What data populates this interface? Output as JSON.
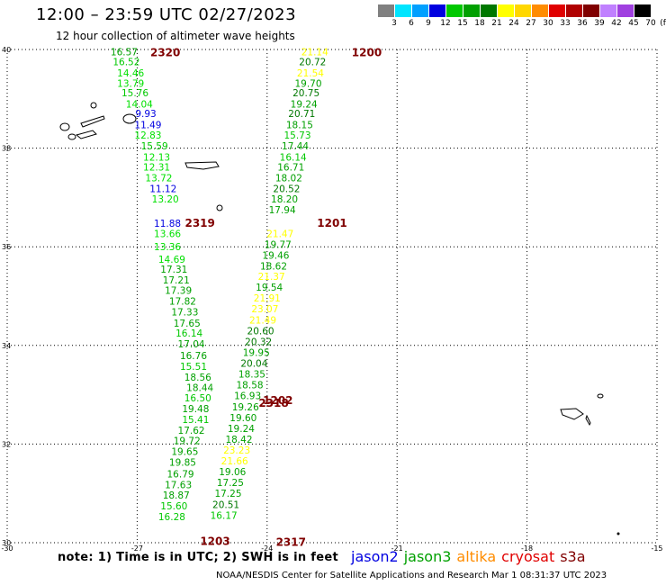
{
  "header": {
    "title": "12:00 – 23:59 UTC 02/27/2023",
    "subtitle": "12 hour collection of altimeter wave heights"
  },
  "colorbar": {
    "unit": "(ft)",
    "entries": [
      {
        "label": "3",
        "color": "#808080"
      },
      {
        "label": "6",
        "color": "#00e5ff"
      },
      {
        "label": "9",
        "color": "#00a0ff"
      },
      {
        "label": "12",
        "color": "#0000e0"
      },
      {
        "label": "15",
        "color": "#00c800"
      },
      {
        "label": "18",
        "color": "#00a000"
      },
      {
        "label": "21",
        "color": "#007800"
      },
      {
        "label": "24",
        "color": "#ffff00"
      },
      {
        "label": "27",
        "color": "#ffd700"
      },
      {
        "label": "30",
        "color": "#ff8c00"
      },
      {
        "label": "33",
        "color": "#e00000"
      },
      {
        "label": "36",
        "color": "#b00000"
      },
      {
        "label": "39",
        "color": "#800000"
      },
      {
        "label": "42",
        "color": "#c080ff"
      },
      {
        "label": "45",
        "color": "#a040e0"
      },
      {
        "label": "70",
        "color": "#000000"
      }
    ]
  },
  "axes": {
    "lon_ticks": [
      "-30",
      "-27",
      "-24",
      "-21",
      "-18",
      "-15"
    ],
    "lat_ticks": [
      "40",
      "38",
      "36",
      "34",
      "32",
      "30"
    ]
  },
  "passes": [
    {
      "label": "2320",
      "lon": -26.35,
      "lat": 39.95,
      "color": "#800000"
    },
    {
      "label": "1200",
      "lon": -21.7,
      "lat": 39.95,
      "color": "#800000"
    },
    {
      "label": "2319",
      "lon": -25.55,
      "lat": 36.5,
      "color": "#800000"
    },
    {
      "label": "1201",
      "lon": -22.5,
      "lat": 36.5,
      "color": "#800000"
    },
    {
      "label": "2318",
      "lon": -23.85,
      "lat": 32.85,
      "color": "#800000"
    },
    {
      "label": "1202",
      "lon": -23.75,
      "lat": 32.9,
      "color": "#800000"
    },
    {
      "label": "1203",
      "lon": -25.2,
      "lat": 30.05,
      "color": "#800000"
    },
    {
      "label": "2317",
      "lon": -23.45,
      "lat": 30.03,
      "color": "#800000"
    }
  ],
  "tracks": [
    {
      "name": "track-2320",
      "points": [
        {
          "v": "16.57",
          "lon": -27.3,
          "lat": 39.95,
          "c": "#00a000"
        },
        {
          "v": "16.52",
          "lon": -27.25,
          "lat": 39.75,
          "c": "#00c800"
        },
        {
          "v": "14.46",
          "lon": -27.15,
          "lat": 39.53,
          "c": "#00e000"
        },
        {
          "v": "13.79",
          "lon": -27.15,
          "lat": 39.32,
          "c": "#00e000"
        },
        {
          "v": "15.76",
          "lon": -27.05,
          "lat": 39.12,
          "c": "#00c800"
        },
        {
          "v": "14.04",
          "lon": -26.95,
          "lat": 38.9,
          "c": "#00e000"
        },
        {
          "v": "9.93",
          "lon": -26.8,
          "lat": 38.7,
          "c": "#0000e0"
        },
        {
          "v": "11.49",
          "lon": -26.75,
          "lat": 38.48,
          "c": "#0000e0"
        },
        {
          "v": "12.83",
          "lon": -26.75,
          "lat": 38.27,
          "c": "#00e000"
        },
        {
          "v": "15.59",
          "lon": -26.6,
          "lat": 38.05,
          "c": "#00c800"
        },
        {
          "v": "12.13",
          "lon": -26.55,
          "lat": 37.82,
          "c": "#00e000"
        },
        {
          "v": "12.31",
          "lon": -26.55,
          "lat": 37.62,
          "c": "#00e000"
        },
        {
          "v": "13.72",
          "lon": -26.5,
          "lat": 37.4,
          "c": "#00e000"
        },
        {
          "v": "11.12",
          "lon": -26.4,
          "lat": 37.18,
          "c": "#0000e0"
        },
        {
          "v": "13.20",
          "lon": -26.35,
          "lat": 36.97,
          "c": "#00e000"
        },
        {
          "v": "11.88",
          "lon": -26.3,
          "lat": 36.48,
          "c": "#0000e0"
        },
        {
          "v": "13.66",
          "lon": -26.3,
          "lat": 36.27,
          "c": "#00e000"
        },
        {
          "v": "13.36",
          "lon": -26.3,
          "lat": 36.0,
          "c": "#00e000"
        },
        {
          "v": "14.69",
          "lon": -26.2,
          "lat": 35.75,
          "c": "#00e000"
        },
        {
          "v": "17.31",
          "lon": -26.15,
          "lat": 35.55,
          "c": "#00a000"
        },
        {
          "v": "17.21",
          "lon": -26.1,
          "lat": 35.33,
          "c": "#00a000"
        },
        {
          "v": "17.39",
          "lon": -26.05,
          "lat": 35.12,
          "c": "#00a000"
        },
        {
          "v": "17.82",
          "lon": -25.95,
          "lat": 34.9,
          "c": "#00a000"
        },
        {
          "v": "17.33",
          "lon": -25.9,
          "lat": 34.68,
          "c": "#00a000"
        },
        {
          "v": "17.65",
          "lon": -25.85,
          "lat": 34.45,
          "c": "#00a000"
        },
        {
          "v": "16.14",
          "lon": -25.8,
          "lat": 34.25,
          "c": "#00c800"
        },
        {
          "v": "17.04",
          "lon": -25.75,
          "lat": 34.03,
          "c": "#00a000"
        },
        {
          "v": "16.76",
          "lon": -25.7,
          "lat": 33.8,
          "c": "#00a000"
        },
        {
          "v": "15.51",
          "lon": -25.7,
          "lat": 33.58,
          "c": "#00c800"
        },
        {
          "v": "18.56",
          "lon": -25.6,
          "lat": 33.36,
          "c": "#00a000"
        },
        {
          "v": "18.44",
          "lon": -25.55,
          "lat": 33.15,
          "c": "#00a000"
        },
        {
          "v": "16.50",
          "lon": -25.6,
          "lat": 32.94,
          "c": "#00c800"
        },
        {
          "v": "19.48",
          "lon": -25.65,
          "lat": 32.72,
          "c": "#00a000"
        },
        {
          "v": "15.41",
          "lon": -25.65,
          "lat": 32.5,
          "c": "#00c800"
        },
        {
          "v": "17.62",
          "lon": -25.75,
          "lat": 32.28,
          "c": "#00a000"
        },
        {
          "v": "19.72",
          "lon": -25.85,
          "lat": 32.07,
          "c": "#00a000"
        },
        {
          "v": "19.65",
          "lon": -25.9,
          "lat": 31.85,
          "c": "#00a000"
        },
        {
          "v": "19.85",
          "lon": -25.95,
          "lat": 31.63,
          "c": "#00a000"
        },
        {
          "v": "16.79",
          "lon": -26.0,
          "lat": 31.4,
          "c": "#00a000"
        },
        {
          "v": "17.63",
          "lon": -26.05,
          "lat": 31.18,
          "c": "#00a000"
        },
        {
          "v": "18.87",
          "lon": -26.1,
          "lat": 30.97,
          "c": "#00a000"
        },
        {
          "v": "15.60",
          "lon": -26.15,
          "lat": 30.75,
          "c": "#00c800"
        },
        {
          "v": "16.28",
          "lon": -26.2,
          "lat": 30.53,
          "c": "#00c800"
        }
      ]
    },
    {
      "name": "track-1200",
      "points": [
        {
          "v": "21.14",
          "lon": -22.9,
          "lat": 39.95,
          "c": "#ffff00"
        },
        {
          "v": "20.72",
          "lon": -22.95,
          "lat": 39.75,
          "c": "#007800"
        },
        {
          "v": "21.54",
          "lon": -23.0,
          "lat": 39.53,
          "c": "#ffff00"
        },
        {
          "v": "19.70",
          "lon": -23.05,
          "lat": 39.32,
          "c": "#00a000"
        },
        {
          "v": "20.75",
          "lon": -23.1,
          "lat": 39.12,
          "c": "#007800"
        },
        {
          "v": "19.24",
          "lon": -23.15,
          "lat": 38.9,
          "c": "#00a000"
        },
        {
          "v": "20.71",
          "lon": -23.2,
          "lat": 38.7,
          "c": "#007800"
        },
        {
          "v": "18.15",
          "lon": -23.25,
          "lat": 38.48,
          "c": "#00a000"
        },
        {
          "v": "15.73",
          "lon": -23.3,
          "lat": 38.27,
          "c": "#00c800"
        },
        {
          "v": "17.44",
          "lon": -23.35,
          "lat": 38.05,
          "c": "#00a000"
        },
        {
          "v": "16.14",
          "lon": -23.4,
          "lat": 37.82,
          "c": "#00c800"
        },
        {
          "v": "16.71",
          "lon": -23.45,
          "lat": 37.62,
          "c": "#00a000"
        },
        {
          "v": "18.02",
          "lon": -23.5,
          "lat": 37.4,
          "c": "#00a000"
        },
        {
          "v": "20.52",
          "lon": -23.55,
          "lat": 37.18,
          "c": "#007800"
        },
        {
          "v": "18.20",
          "lon": -23.6,
          "lat": 36.97,
          "c": "#00a000"
        },
        {
          "v": "17.94",
          "lon": -23.65,
          "lat": 36.75,
          "c": "#00a000"
        },
        {
          "v": "21.47",
          "lon": -23.7,
          "lat": 36.27,
          "c": "#ffff00"
        },
        {
          "v": "19.77",
          "lon": -23.75,
          "lat": 36.05,
          "c": "#00a000"
        },
        {
          "v": "19.46",
          "lon": -23.8,
          "lat": 35.83,
          "c": "#00a000"
        },
        {
          "v": "18.62",
          "lon": -23.85,
          "lat": 35.61,
          "c": "#00a000"
        },
        {
          "v": "21.37",
          "lon": -23.9,
          "lat": 35.4,
          "c": "#ffff00"
        },
        {
          "v": "19.54",
          "lon": -23.95,
          "lat": 35.18,
          "c": "#00a000"
        },
        {
          "v": "21.91",
          "lon": -24.0,
          "lat": 34.96,
          "c": "#ffff00"
        },
        {
          "v": "23.07",
          "lon": -24.05,
          "lat": 34.74,
          "c": "#ffff00"
        },
        {
          "v": "21.49",
          "lon": -24.1,
          "lat": 34.52,
          "c": "#ffff00"
        },
        {
          "v": "20.60",
          "lon": -24.15,
          "lat": 34.3,
          "c": "#007800"
        },
        {
          "v": "20.32",
          "lon": -24.2,
          "lat": 34.08,
          "c": "#007800"
        },
        {
          "v": "19.95",
          "lon": -24.25,
          "lat": 33.86,
          "c": "#00a000"
        },
        {
          "v": "20.04",
          "lon": -24.3,
          "lat": 33.64,
          "c": "#007800"
        },
        {
          "v": "18.35",
          "lon": -24.35,
          "lat": 33.42,
          "c": "#00a000"
        },
        {
          "v": "18.58",
          "lon": -24.4,
          "lat": 33.2,
          "c": "#00a000"
        },
        {
          "v": "16.93",
          "lon": -24.45,
          "lat": 32.98,
          "c": "#00a000"
        },
        {
          "v": "19.26",
          "lon": -24.5,
          "lat": 32.76,
          "c": "#00a000"
        },
        {
          "v": "19.60",
          "lon": -24.55,
          "lat": 32.54,
          "c": "#00a000"
        },
        {
          "v": "19.24",
          "lon": -24.6,
          "lat": 32.32,
          "c": "#00a000"
        },
        {
          "v": "18.42",
          "lon": -24.65,
          "lat": 32.1,
          "c": "#00a000"
        },
        {
          "v": "23.23",
          "lon": -24.7,
          "lat": 31.88,
          "c": "#ffff00"
        },
        {
          "v": "21.66",
          "lon": -24.75,
          "lat": 31.66,
          "c": "#ffff00"
        },
        {
          "v": "19.06",
          "lon": -24.8,
          "lat": 31.44,
          "c": "#00a000"
        },
        {
          "v": "17.25",
          "lon": -24.85,
          "lat": 31.22,
          "c": "#00a000"
        },
        {
          "v": "17.25",
          "lon": -24.9,
          "lat": 31.0,
          "c": "#00a000"
        },
        {
          "v": "20.51",
          "lon": -24.95,
          "lat": 30.78,
          "c": "#007800"
        },
        {
          "v": "16.17",
          "lon": -25.0,
          "lat": 30.56,
          "c": "#00c800"
        }
      ]
    }
  ],
  "note": "note:  1) Time is in UTC;  2) SWH is in feet",
  "legend": [
    {
      "label": "jason2",
      "color": "#0000e0"
    },
    {
      "label": "jason3",
      "color": "#00a000"
    },
    {
      "label": "altika",
      "color": "#ff8c00"
    },
    {
      "label": "cryosat",
      "color": "#e00000"
    },
    {
      "label": "s3a",
      "color": "#800000"
    }
  ],
  "footer": "NOAA/NESDIS Center for Satellite Applications and Research    Mar  1 08:31:37 UTC 2023"
}
